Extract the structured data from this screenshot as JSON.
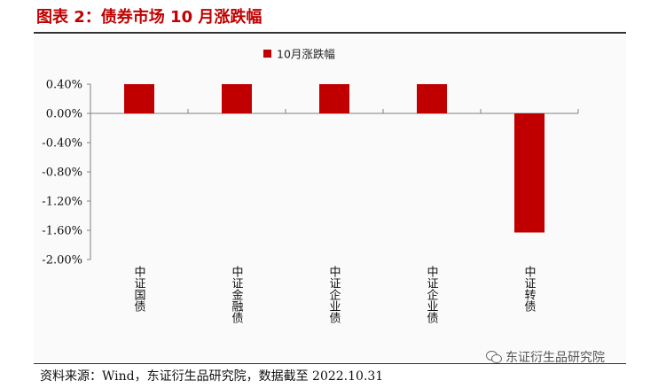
{
  "figure": {
    "title": "图表 2：债券市场 10 月涨跌幅",
    "source": "资料来源：Wind，东证衍生品研究院，数据截至 2022.10.31",
    "watermark": "东证衍生品研究院",
    "watermark_icon": "wechat-icon"
  },
  "chart_data": {
    "type": "bar",
    "title": "",
    "xlabel": "",
    "ylabel": "",
    "categories": [
      "中证国债",
      "中证金融债",
      "中证企业债",
      "中证企业债",
      "中证转债"
    ],
    "series": [
      {
        "name": "10月涨跌幅",
        "values": [
          0.4,
          0.4,
          0.4,
          0.4,
          -1.63
        ],
        "color": "#c00000"
      }
    ],
    "ylim": [
      -2.0,
      0.4
    ],
    "yticks": [
      0.4,
      0.0,
      -0.4,
      -0.8,
      -1.2,
      -1.6,
      -2.0
    ],
    "ytick_labels": [
      "0.40%",
      "0.00%",
      "-0.40%",
      "-0.80%",
      "-1.20%",
      "-1.60%",
      "-2.00%"
    ],
    "category_labels_vertical": true,
    "grid": false,
    "legend_position": "top-center"
  }
}
